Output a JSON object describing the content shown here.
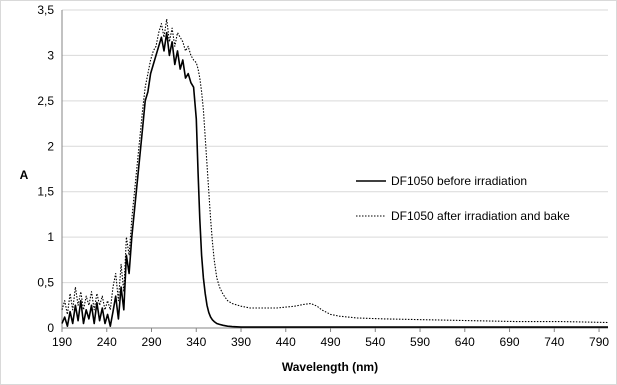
{
  "chart_data": {
    "type": "line",
    "xlabel": "Wavelength (nm)",
    "ylabel": "A",
    "xlim": [
      190,
      800
    ],
    "ylim": [
      0,
      3.5
    ],
    "x_ticks": [
      "190",
      "240",
      "290",
      "340",
      "390",
      "440",
      "490",
      "540",
      "590",
      "640",
      "690",
      "740",
      "790"
    ],
    "x_tick_values": [
      190,
      240,
      290,
      340,
      390,
      440,
      490,
      540,
      590,
      640,
      690,
      740,
      790
    ],
    "y_ticks": [
      "0",
      "0,5",
      "1",
      "1,5",
      "2",
      "2,5",
      "3",
      "3,5"
    ],
    "y_tick_values": [
      0,
      0.5,
      1,
      1.5,
      2,
      2.5,
      3,
      3.5
    ],
    "grid": "horizontal",
    "legend_position": "right",
    "series": [
      {
        "name": "DF1050 before irradiation",
        "style": "solid",
        "color": "#000000",
        "x": [
          190,
          193,
          196,
          199,
          202,
          205,
          208,
          211,
          214,
          217,
          220,
          223,
          226,
          229,
          232,
          235,
          238,
          241,
          244,
          247,
          250,
          253,
          256,
          259,
          262,
          265,
          268,
          271,
          274,
          277,
          280,
          283,
          286,
          289,
          292,
          295,
          298,
          301,
          304,
          307,
          310,
          313,
          316,
          319,
          322,
          325,
          328,
          331,
          334,
          337,
          340,
          342,
          344,
          346,
          348,
          350,
          352,
          354,
          356,
          358,
          360,
          363,
          366,
          370,
          375,
          380,
          390,
          400,
          420,
          450,
          500,
          600,
          700,
          800
        ],
        "y": [
          0.05,
          0.12,
          0.02,
          0.18,
          0.05,
          0.25,
          0.08,
          0.3,
          0.05,
          0.2,
          0.1,
          0.25,
          0.05,
          0.28,
          0.08,
          0.22,
          0.05,
          0.15,
          0.02,
          0.18,
          0.35,
          0.1,
          0.45,
          0.2,
          0.8,
          0.6,
          1.0,
          1.3,
          1.6,
          1.9,
          2.2,
          2.5,
          2.6,
          2.8,
          2.9,
          3.0,
          3.1,
          3.2,
          3.05,
          3.25,
          3.0,
          3.15,
          2.9,
          3.05,
          2.85,
          2.95,
          2.75,
          2.8,
          2.7,
          2.65,
          2.3,
          1.7,
          1.2,
          0.8,
          0.55,
          0.38,
          0.25,
          0.17,
          0.12,
          0.09,
          0.07,
          0.05,
          0.04,
          0.03,
          0.02,
          0.015,
          0.01,
          0.01,
          0.01,
          0.01,
          0.01,
          0.01,
          0.01,
          0.01
        ]
      },
      {
        "name": "DF1050 after irradiation and bake",
        "style": "dotted",
        "color": "#000000",
        "x": [
          190,
          193,
          196,
          199,
          202,
          205,
          208,
          211,
          214,
          217,
          220,
          223,
          226,
          229,
          232,
          235,
          238,
          241,
          244,
          247,
          250,
          253,
          256,
          259,
          262,
          265,
          268,
          271,
          274,
          277,
          280,
          283,
          286,
          289,
          292,
          295,
          298,
          301,
          304,
          307,
          310,
          313,
          316,
          319,
          322,
          325,
          328,
          331,
          334,
          337,
          340,
          342,
          344,
          346,
          348,
          350,
          352,
          354,
          356,
          358,
          360,
          363,
          366,
          370,
          375,
          380,
          390,
          400,
          410,
          420,
          430,
          440,
          450,
          460,
          468,
          475,
          480,
          490,
          500,
          520,
          550,
          600,
          650,
          700,
          750,
          800
        ],
        "y": [
          0.2,
          0.3,
          0.15,
          0.38,
          0.2,
          0.45,
          0.25,
          0.4,
          0.2,
          0.35,
          0.25,
          0.4,
          0.2,
          0.38,
          0.25,
          0.35,
          0.2,
          0.3,
          0.2,
          0.45,
          0.6,
          0.3,
          0.7,
          0.4,
          1.0,
          0.8,
          1.2,
          1.5,
          1.8,
          2.1,
          2.4,
          2.65,
          2.8,
          2.95,
          3.05,
          3.1,
          3.25,
          3.35,
          3.2,
          3.4,
          3.15,
          3.3,
          3.1,
          3.25,
          3.2,
          3.15,
          3.05,
          3.1,
          3.0,
          2.95,
          2.92,
          2.85,
          2.75,
          2.6,
          2.4,
          2.1,
          1.8,
          1.5,
          1.2,
          0.95,
          0.75,
          0.55,
          0.45,
          0.37,
          0.3,
          0.27,
          0.24,
          0.22,
          0.22,
          0.22,
          0.22,
          0.23,
          0.24,
          0.26,
          0.27,
          0.24,
          0.2,
          0.15,
          0.13,
          0.11,
          0.1,
          0.09,
          0.08,
          0.07,
          0.07,
          0.06
        ]
      }
    ]
  }
}
